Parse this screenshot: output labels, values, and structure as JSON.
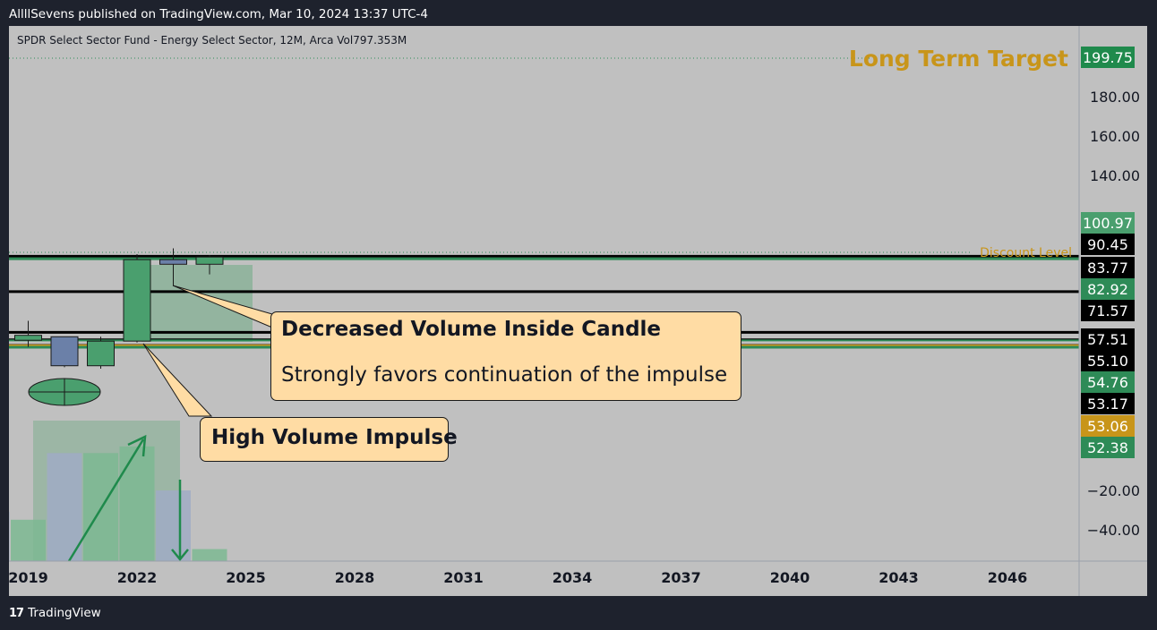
{
  "header": {
    "published": "AllllSevens published on TradingView.com, Mar 10, 2024 13:37 UTC-4",
    "symbol_line": "SPDR Select Sector Fund - Energy Select Sector, 12M, Arca  Vol797.353M"
  },
  "footer": {
    "brand_mark": "17",
    "brand": "TradingView"
  },
  "annotations": {
    "long_term_target": "Long Term Target",
    "discount_level": "Discount Level",
    "callout_inside_title": "Decreased Volume Inside Candle",
    "callout_inside_body": "Strongly favors continuation of the impulse",
    "callout_impulse": "High Volume Impulse"
  },
  "colors": {
    "up": "#4a9f6e",
    "down": "#6b80a8",
    "target_text": "#c8951a",
    "volume_up": "#7db892",
    "volume_down": "#a0acc4"
  },
  "chart_data": {
    "type": "candlestick",
    "interval": "12M",
    "x_ticks": [
      "2019",
      "2022",
      "2025",
      "2028",
      "2031",
      "2034",
      "2037",
      "2040",
      "2043",
      "2046"
    ],
    "y_ticks": [
      "180.00",
      "160.00",
      "140.00",
      "−20.00",
      "−40.00"
    ],
    "price_labels": [
      {
        "value": "199.75",
        "bg": "#1f8a4c",
        "fg": "#ffffff"
      },
      {
        "value": "100.97",
        "bg": "#4a9f6e",
        "fg": "#ffffff"
      },
      {
        "value": "90.45",
        "bg": "#000000",
        "fg": "#ffffff"
      },
      {
        "value": "83.77",
        "bg": "#000000",
        "fg": "#ffffff"
      },
      {
        "value": "82.92",
        "bg": "#2e8b57",
        "fg": "#ffffff"
      },
      {
        "value": "71.57",
        "bg": "#000000",
        "fg": "#ffffff"
      },
      {
        "value": "57.51",
        "bg": "#000000",
        "fg": "#ffffff"
      },
      {
        "value": "55.10",
        "bg": "#000000",
        "fg": "#ffffff"
      },
      {
        "value": "54.76",
        "bg": "#2e8b57",
        "fg": "#ffffff"
      },
      {
        "value": "53.17",
        "bg": "#000000",
        "fg": "#ffffff"
      },
      {
        "value": "53.06",
        "bg": "#c8951a",
        "fg": "#ffffff"
      },
      {
        "value": "52.38",
        "bg": "#2e8b57",
        "fg": "#ffffff"
      }
    ],
    "candles": [
      {
        "year": 2019,
        "open": 54.8,
        "high": 61.5,
        "low": 52.5,
        "close": 56.5
      },
      {
        "year": 2020,
        "open": 56.0,
        "high": 56.0,
        "low": 45.5,
        "close": 46.0
      },
      {
        "year": 2021,
        "open": 46.0,
        "high": 56.0,
        "low": 45.0,
        "close": 54.5
      },
      {
        "year": 2022,
        "open": 54.5,
        "high": 84.5,
        "low": 54.0,
        "close": 82.6
      },
      {
        "year": 2023,
        "open": 82.6,
        "high": 86.5,
        "low": 73.5,
        "close": 81.0
      },
      {
        "year": 2024,
        "open": 81.0,
        "high": 84.2,
        "low": 77.5,
        "close": 83.5
      }
    ],
    "volume": [
      {
        "year": 2018,
        "value": 0.37,
        "dir": "down"
      },
      {
        "year": 2019,
        "value": 0.31,
        "dir": "up"
      },
      {
        "year": 2020,
        "value": 0.81,
        "dir": "down"
      },
      {
        "year": 2021,
        "value": 0.81,
        "dir": "up"
      },
      {
        "year": 2022,
        "value": 0.86,
        "dir": "up"
      },
      {
        "year": 2023,
        "value": 0.53,
        "dir": "down"
      },
      {
        "year": 2024,
        "value": 0.09,
        "dir": "up"
      }
    ]
  }
}
